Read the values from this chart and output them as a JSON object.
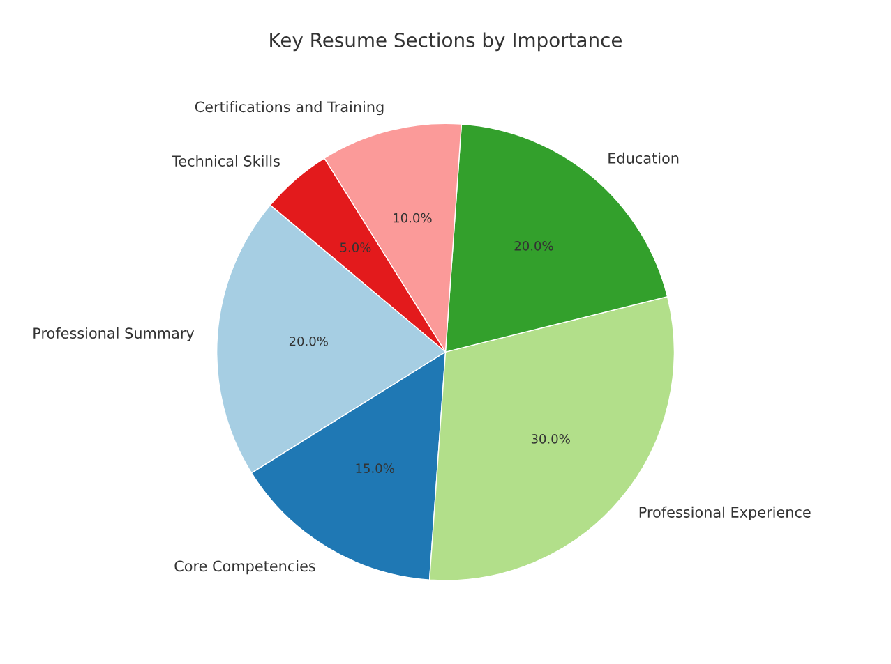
{
  "chart_data": {
    "type": "pie",
    "title": "Key Resume Sections by Importance",
    "categories": [
      "Professional Summary",
      "Core Competencies",
      "Professional Experience",
      "Education",
      "Certifications and Training",
      "Technical Skills"
    ],
    "values": [
      20,
      15,
      30,
      20,
      10,
      5
    ],
    "colors": [
      "#a6cee3",
      "#1f78b4",
      "#b2df8a",
      "#33a02c",
      "#fb9a99",
      "#e31a1c"
    ],
    "value_labels": [
      "20.0%",
      "15.0%",
      "30.0%",
      "20.0%",
      "10.0%",
      "5.0%"
    ]
  }
}
